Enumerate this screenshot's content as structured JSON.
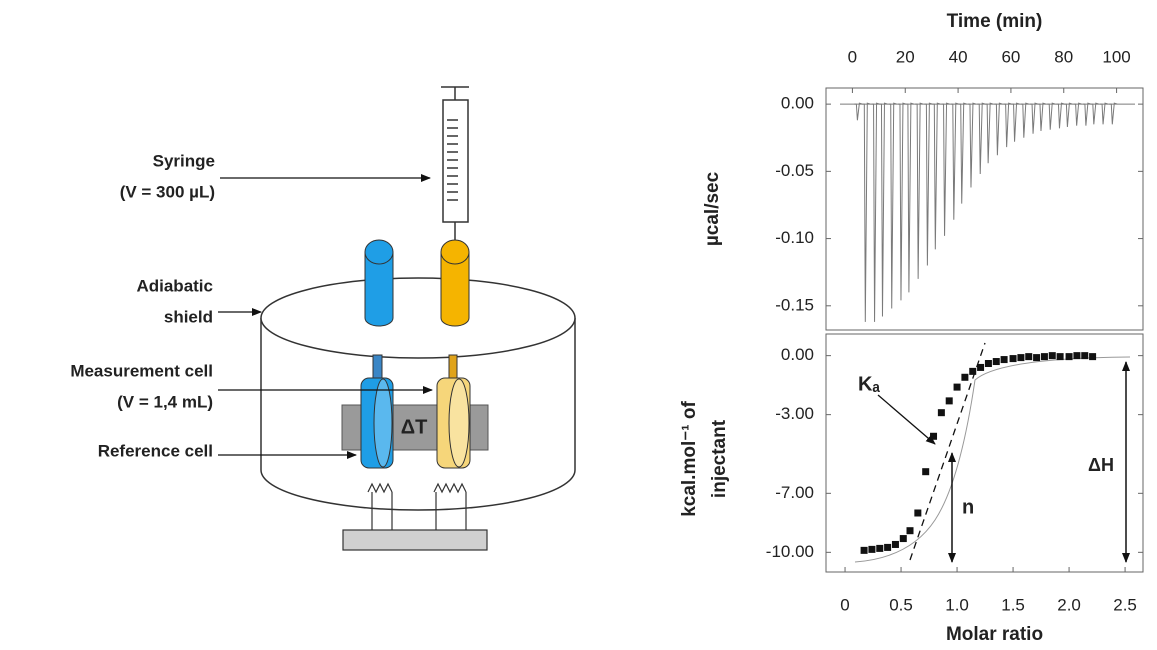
{
  "diagram": {
    "labels": {
      "syringe": "Syringe",
      "syringe_volume": "(V = 300 µL)",
      "shield_1": "Adiabatic",
      "shield_2": "shield",
      "measurement": "Measurement cell",
      "measurement_volume": "(V = 1,4 mL)",
      "reference": "Reference cell",
      "delta_t": "ΔT"
    }
  },
  "chart_data": [
    {
      "type": "spikes",
      "xlabel": "Time (min)",
      "ylabel": "µcal/sec",
      "xaxis": "top",
      "color": "#7a7a7a",
      "x": [
        1.5,
        4.5,
        8,
        11,
        14.5,
        18,
        21,
        24.5,
        28,
        31,
        34.5,
        38,
        41,
        44.5,
        48,
        51,
        54.5,
        58,
        61,
        64.5,
        68,
        71,
        74.5,
        78,
        81,
        84.5,
        88,
        91,
        94.5,
        98
      ],
      "values": [
        -0.012,
        -0.162,
        -0.162,
        -0.158,
        -0.152,
        -0.146,
        -0.14,
        -0.13,
        -0.12,
        -0.108,
        -0.098,
        -0.086,
        -0.074,
        -0.062,
        -0.052,
        -0.044,
        -0.038,
        -0.032,
        -0.028,
        -0.025,
        -0.022,
        -0.02,
        -0.019,
        -0.018,
        -0.017,
        -0.016,
        -0.016,
        -0.015,
        -0.015,
        -0.015
      ],
      "xlim": [
        -10,
        110
      ],
      "xticks": [
        0,
        20,
        40,
        60,
        80,
        100
      ],
      "ylim": [
        -0.168,
        0.012
      ],
      "yticks": [
        {
          "value": 0,
          "label": "0.00"
        },
        {
          "value": -0.05,
          "label": "-0.05"
        },
        {
          "value": -0.1,
          "label": "-0.10"
        },
        {
          "value": -0.15,
          "label": "-0.15"
        }
      ]
    },
    {
      "type": "scatter",
      "xlabel": "Molar ratio",
      "ylabel_lines": [
        "kcal.mol⁻¹ of",
        "injectant"
      ],
      "xaxis": "bottom",
      "color": "#111",
      "x": [
        0.17,
        0.24,
        0.31,
        0.38,
        0.45,
        0.52,
        0.58,
        0.65,
        0.72,
        0.79,
        0.86,
        0.93,
        1.0,
        1.07,
        1.14,
        1.21,
        1.28,
        1.35,
        1.42,
        1.5,
        1.57,
        1.64,
        1.71,
        1.78,
        1.85,
        1.92,
        2.0,
        2.07,
        2.14,
        2.21
      ],
      "values": [
        -9.9,
        -9.85,
        -9.8,
        -9.75,
        -9.6,
        -9.3,
        -8.9,
        -8.0,
        -5.9,
        -4.1,
        -2.9,
        -2.3,
        -1.6,
        -1.1,
        -0.8,
        -0.6,
        -0.4,
        -0.3,
        -0.2,
        -0.15,
        -0.1,
        -0.05,
        -0.1,
        -0.05,
        0,
        -0.05,
        -0.05,
        0,
        0,
        -0.05
      ],
      "xlim": [
        -0.17,
        2.66
      ],
      "xticks": [
        0,
        {
          "value": 0.5,
          "label": "0.5"
        },
        {
          "value": 1,
          "label": "1.0"
        },
        {
          "value": 1.5,
          "label": "1.5"
        },
        {
          "value": 2,
          "label": "2.0"
        },
        {
          "value": 2.5,
          "label": "2.5"
        }
      ],
      "ylim": [
        -11,
        1.1
      ],
      "yticks": [
        {
          "value": 0,
          "label": "0.00"
        },
        {
          "value": -3,
          "label": "-3.00"
        },
        {
          "value": -7,
          "label": "-7.00"
        },
        {
          "value": -10,
          "label": "-10.00"
        }
      ],
      "annotations": {
        "ka": "Kₐ",
        "n": "n",
        "dh": "ΔH"
      }
    }
  ]
}
